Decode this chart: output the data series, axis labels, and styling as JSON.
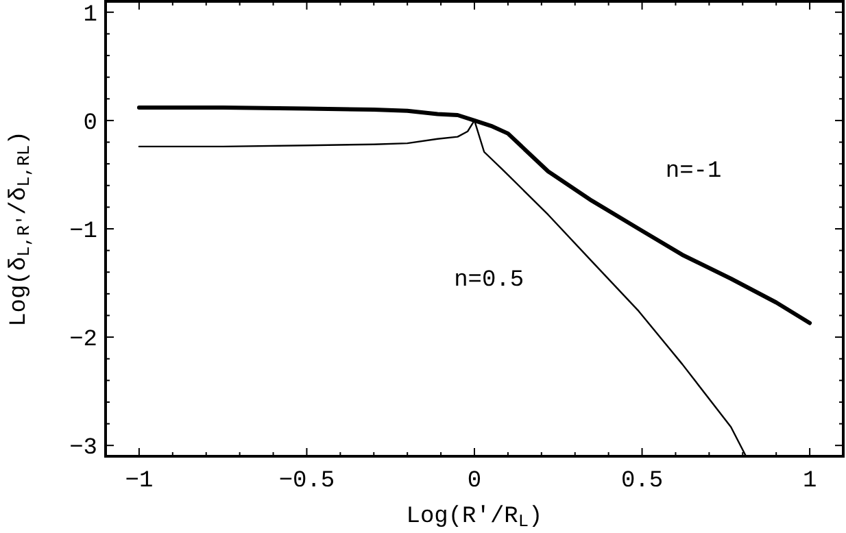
{
  "chart_data": {
    "type": "line",
    "xlabel": "Log(R'/R$_{L}$)",
    "ylabel": "Log(δ$_{L,R'}$/δ$_{L,R}$$_{L}$)",
    "series": [
      {
        "name": "n=-1",
        "color": "#000000",
        "x": [
          -1,
          -0.75,
          -0.5,
          -0.3,
          -0.2,
          -0.11,
          -0.05,
          0,
          0.05,
          0.1,
          0.22,
          0.35,
          0.49,
          0.62,
          0.765,
          0.9,
          1
        ],
        "values": [
          0.12,
          0.12,
          0.11,
          0.1,
          0.09,
          0.06,
          0.05,
          0,
          -0.05,
          -0.12,
          -0.47,
          -0.74,
          -1.0,
          -1.24,
          -1.46,
          -1.68,
          -1.87
        ]
      },
      {
        "name": "n=0.5",
        "color": "#000000",
        "x": [
          -1,
          -0.75,
          -0.5,
          -0.3,
          -0.2,
          -0.11,
          -0.05,
          -0.02,
          0,
          0.029,
          0.083,
          0.22,
          0.35,
          0.49,
          0.62,
          0.765,
          0.81
        ],
        "values": [
          -0.24,
          -0.24,
          -0.23,
          -0.22,
          -0.21,
          -0.17,
          -0.15,
          -0.1,
          0,
          -0.29,
          -0.45,
          -0.87,
          -1.3,
          -1.76,
          -2.25,
          -2.83,
          -3.1
        ]
      }
    ],
    "xlim": [
      -1.1,
      1.1
    ],
    "ylim": [
      -3.1,
      1.1
    ],
    "xticks": [
      -1,
      {
        "value": -0.9,
        "label": null
      },
      {
        "value": -0.8,
        "label": null
      },
      {
        "value": -0.7,
        "label": null
      },
      {
        "value": -0.6,
        "label": null
      },
      -0.5,
      {
        "value": -0.4,
        "label": null
      },
      {
        "value": -0.3,
        "label": null
      },
      {
        "value": -0.2,
        "label": null
      },
      {
        "value": -0.1,
        "label": null
      },
      0,
      {
        "value": 0.1,
        "label": null
      },
      {
        "value": 0.2,
        "label": null
      },
      {
        "value": 0.3,
        "label": null
      },
      {
        "value": 0.4,
        "label": null
      },
      0.5,
      {
        "value": 0.6,
        "label": null
      },
      {
        "value": 0.7,
        "label": null
      },
      {
        "value": 0.8,
        "label": null
      },
      {
        "value": 0.9,
        "label": null
      },
      1
    ],
    "yticks": [
      -3,
      {
        "value": -2.8,
        "label": null
      },
      {
        "value": -2.6,
        "label": null
      },
      {
        "value": -2.4,
        "label": null
      },
      {
        "value": -2.2,
        "label": null
      },
      -2,
      {
        "value": -1.8,
        "label": null
      },
      {
        "value": -1.6,
        "label": null
      },
      {
        "value": -1.4,
        "label": null
      },
      {
        "value": -1.2,
        "label": null
      },
      -1,
      {
        "value": -0.8,
        "label": null
      },
      {
        "value": -0.6,
        "label": null
      },
      {
        "value": -0.4,
        "label": null
      },
      {
        "value": -0.2,
        "label": null
      },
      0,
      {
        "value": 0.2,
        "label": null
      },
      {
        "value": 0.4,
        "label": null
      },
      {
        "value": 0.6,
        "label": null
      },
      {
        "value": 0.8,
        "label": null
      },
      1
    ]
  }
}
